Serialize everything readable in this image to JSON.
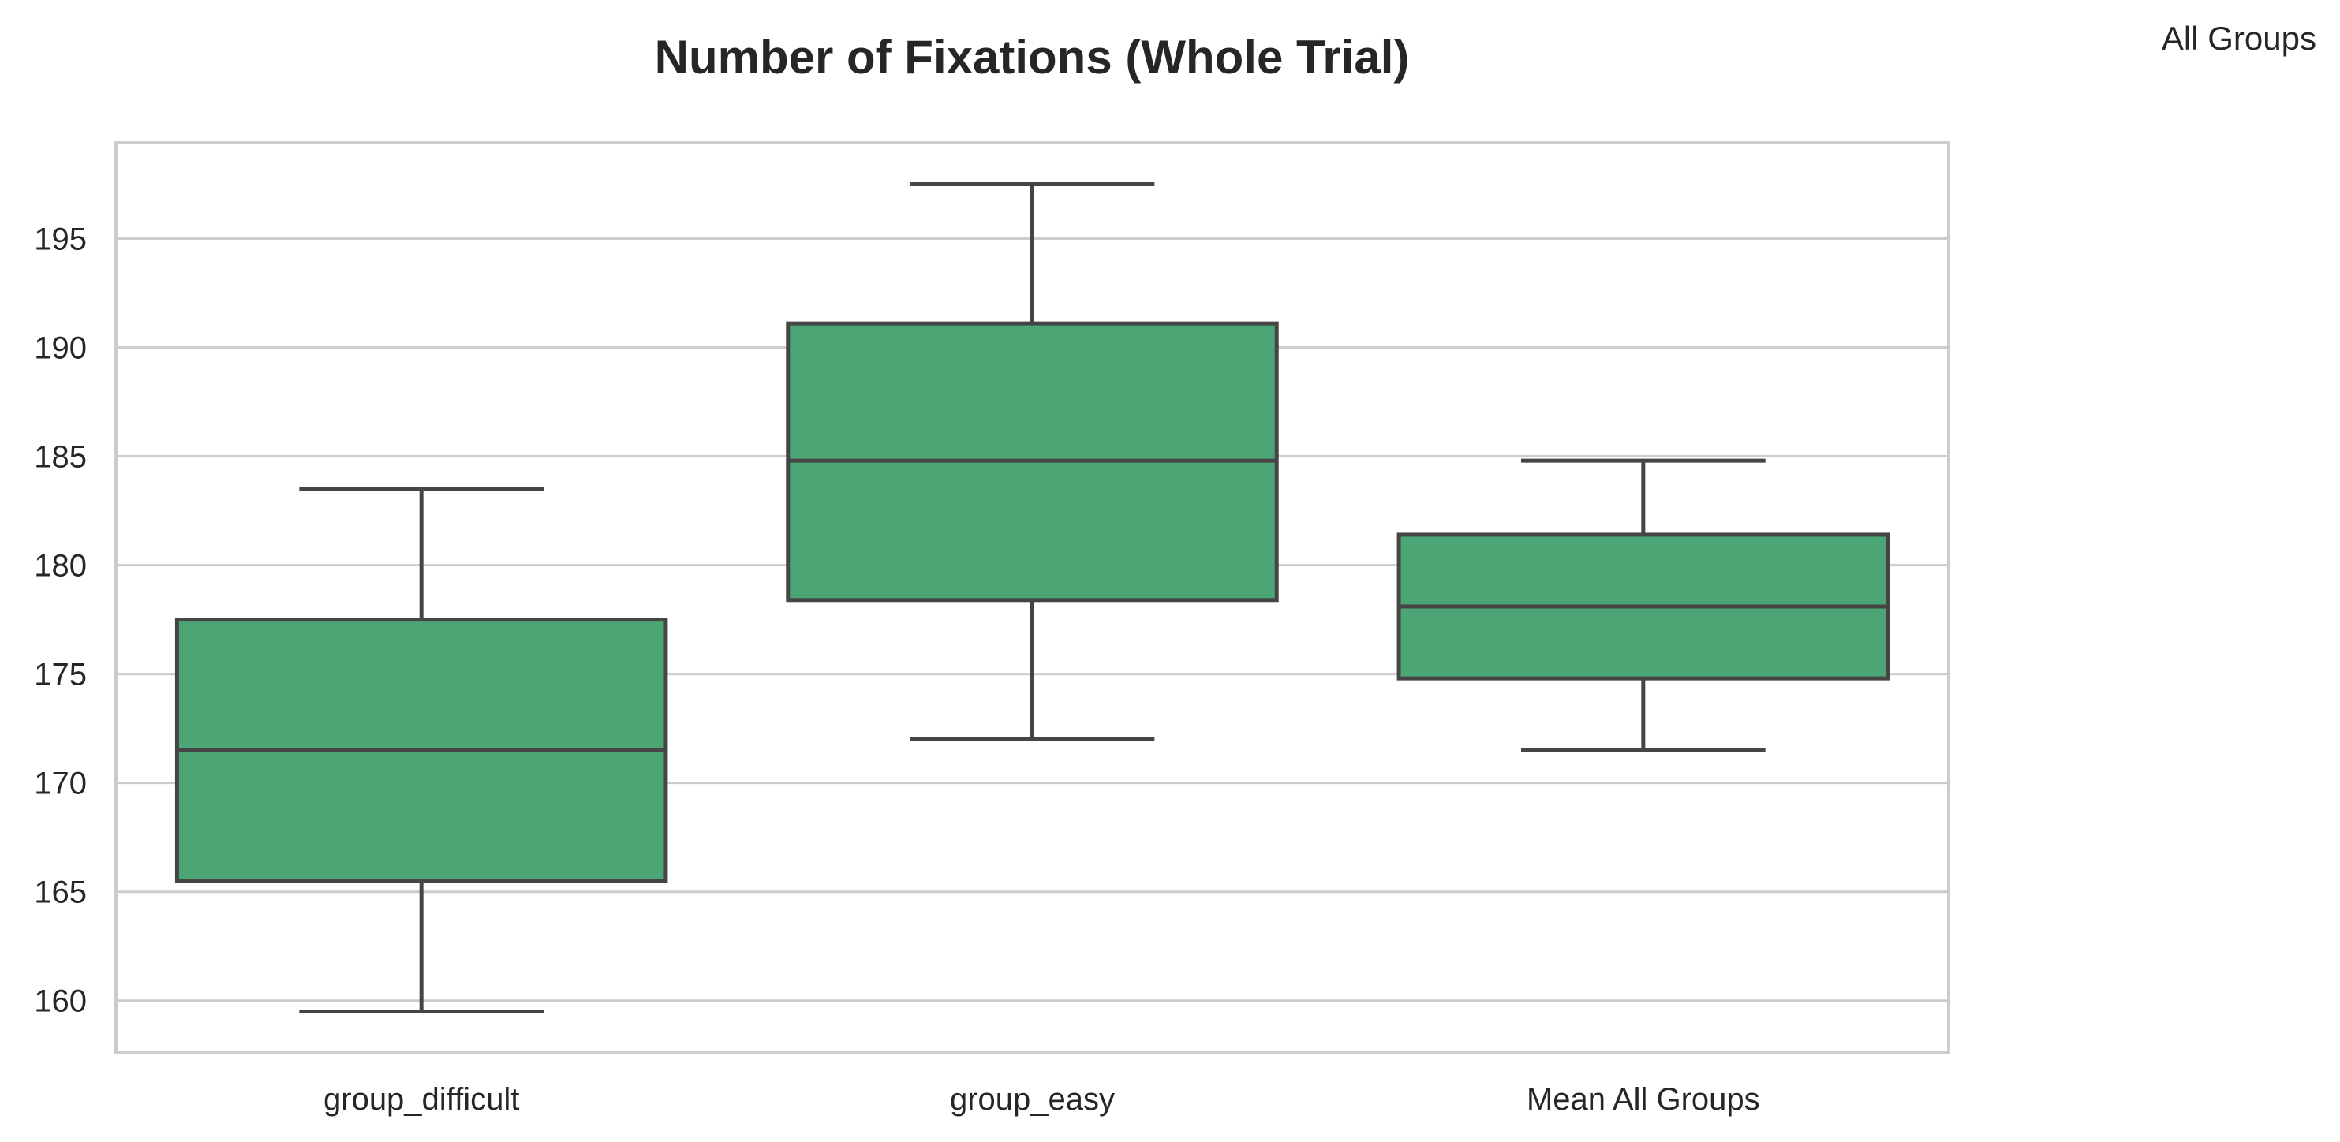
{
  "chart_data": {
    "type": "box",
    "title": "Number of Fixations (Whole Trial)",
    "legend_label": "All Groups",
    "legend_position": "top-right, outside plot",
    "xlabel": "",
    "ylabel": "",
    "ylim": [
      157.6,
      199.4
    ],
    "yticks": [
      160,
      165,
      170,
      175,
      180,
      185,
      190,
      195
    ],
    "grid": "horizontal",
    "box_color": "#4ba574",
    "line_color": "#454545",
    "categories": [
      "group_difficult",
      "group_easy",
      "Mean All Groups"
    ],
    "boxes": [
      {
        "category": "group_difficult",
        "whisker_low": 159.5,
        "q1": 165.5,
        "median": 171.5,
        "q3": 177.5,
        "whisker_high": 183.5
      },
      {
        "category": "group_easy",
        "whisker_low": 172.0,
        "q1": 178.4,
        "median": 184.8,
        "q3": 191.1,
        "whisker_high": 197.5
      },
      {
        "category": "Mean All Groups",
        "whisker_low": 171.5,
        "q1": 174.8,
        "median": 178.1,
        "q3": 181.4,
        "whisker_high": 184.8
      }
    ]
  }
}
